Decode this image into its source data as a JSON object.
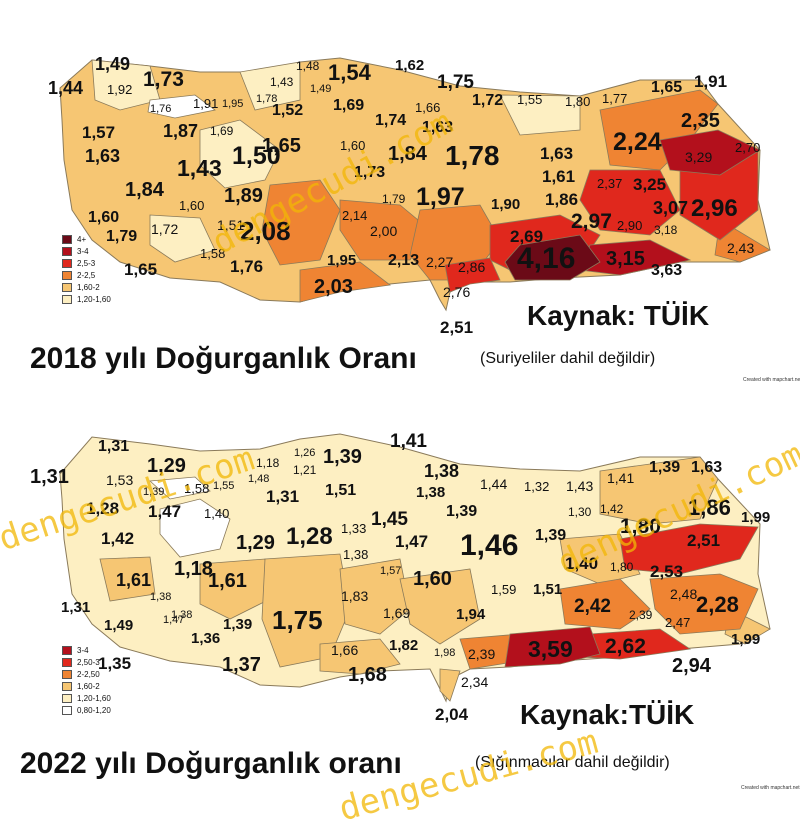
{
  "colors": {
    "c4plus": "#6b0a17",
    "c3_4": "#b3101c",
    "c25_3": "#e0281d",
    "c2_25": "#ef8433",
    "c16_2": "#f6c673",
    "c12_16": "#fdefc2",
    "c08_12": "#ffffff",
    "border": "#8a7a5a",
    "watermark": "#f2b705"
  },
  "watermark": "dengecudi.com",
  "credit": "Created with mapchart.net",
  "map2018": {
    "title": "2018 yılı Doğurganlık Oranı",
    "note": "(Suriyeliler dahil değildir)",
    "source": "Kaynak: TÜİK",
    "legend": [
      "4+",
      "3-4",
      "2,5-3",
      "2-2,5",
      "1,60-2",
      "1,20-1,60"
    ],
    "labels": [
      "1,49",
      "1,44",
      "1,92",
      "1,73",
      "1,48",
      "1,43",
      "1,54",
      "1,62",
      "1,75",
      "1,91",
      "1,49",
      "1,76",
      "1,91",
      "1,95",
      "1,78",
      "1,52",
      "1,69",
      "1,74",
      "1,66",
      "1,72",
      "1,55",
      "1,80",
      "1,77",
      "1,65",
      "1,57",
      "1,87",
      "1,69",
      "1,65",
      "1,60",
      "1,63",
      "1,84",
      "2,24",
      "2,35",
      "1,63",
      "1,43",
      "1,50",
      "1,73",
      "1,78",
      "1,63",
      "3,29",
      "2,70",
      "1,84",
      "1,60",
      "1,89",
      "1,79",
      "1,97",
      "1,61",
      "2,37",
      "3,25",
      "1,60",
      "1,72",
      "2,14",
      "1,90",
      "1,86",
      "3,07",
      "2,96",
      "1,79",
      "1,51",
      "2,08",
      "2,00",
      "2,97",
      "2,90",
      "3,18",
      "1,58",
      "2,69",
      "1,65",
      "1,76",
      "1,95",
      "2,13",
      "2,27",
      "2,86",
      "4,16",
      "3,15",
      "2,43",
      "2,03",
      "2,76",
      "3,63",
      "2,51",
      "1,84",
      "1,84"
    ]
  },
  "map2022": {
    "title": "2022 yılı Doğurganlık oranı",
    "note": "(Sığınmacılar dahil değildir)",
    "source": "Kaynak:TÜİK",
    "legend": [
      "3-4",
      "2,50-3",
      "2-2,50",
      "1,60-2",
      "1,20-1,60",
      "0,80-1,20"
    ],
    "labels": [
      "1,31",
      "1,31",
      "1,53",
      "1,29",
      "1,26",
      "1,39",
      "1,41",
      "1,18",
      "1,21",
      "1,48",
      "1,38",
      "1,44",
      "1,32",
      "1,43",
      "1,41",
      "1,39",
      "1,63",
      "1,39",
      "1,58",
      "1,55",
      "1,31",
      "1,51",
      "1,38",
      "1,28",
      "1,47",
      "1,40",
      "1,45",
      "1,39",
      "1,30",
      "1,42",
      "1,86",
      "1,99",
      "1,42",
      "1,29",
      "1,28",
      "1,33",
      "1,47",
      "1,46",
      "1,39",
      "1,80",
      "2,51",
      "1,18",
      "1,38",
      "1,38",
      "1,57",
      "1,60",
      "1,40",
      "1,80",
      "2,53",
      "1,61",
      "1,61",
      "1,83",
      "1,59",
      "1,51",
      "2,42",
      "2,48",
      "2,28",
      "1,38",
      "1,69",
      "1,94",
      "2,39",
      "2,47",
      "1,31",
      "1,49",
      "1,47",
      "1,39",
      "1,75",
      "1,36",
      "1,66",
      "1,82",
      "1,98",
      "2,39",
      "3,59",
      "2,62",
      "1,99",
      "1,35",
      "1,37",
      "1,68",
      "2,34",
      "2,94",
      "2,04"
    ]
  }
}
